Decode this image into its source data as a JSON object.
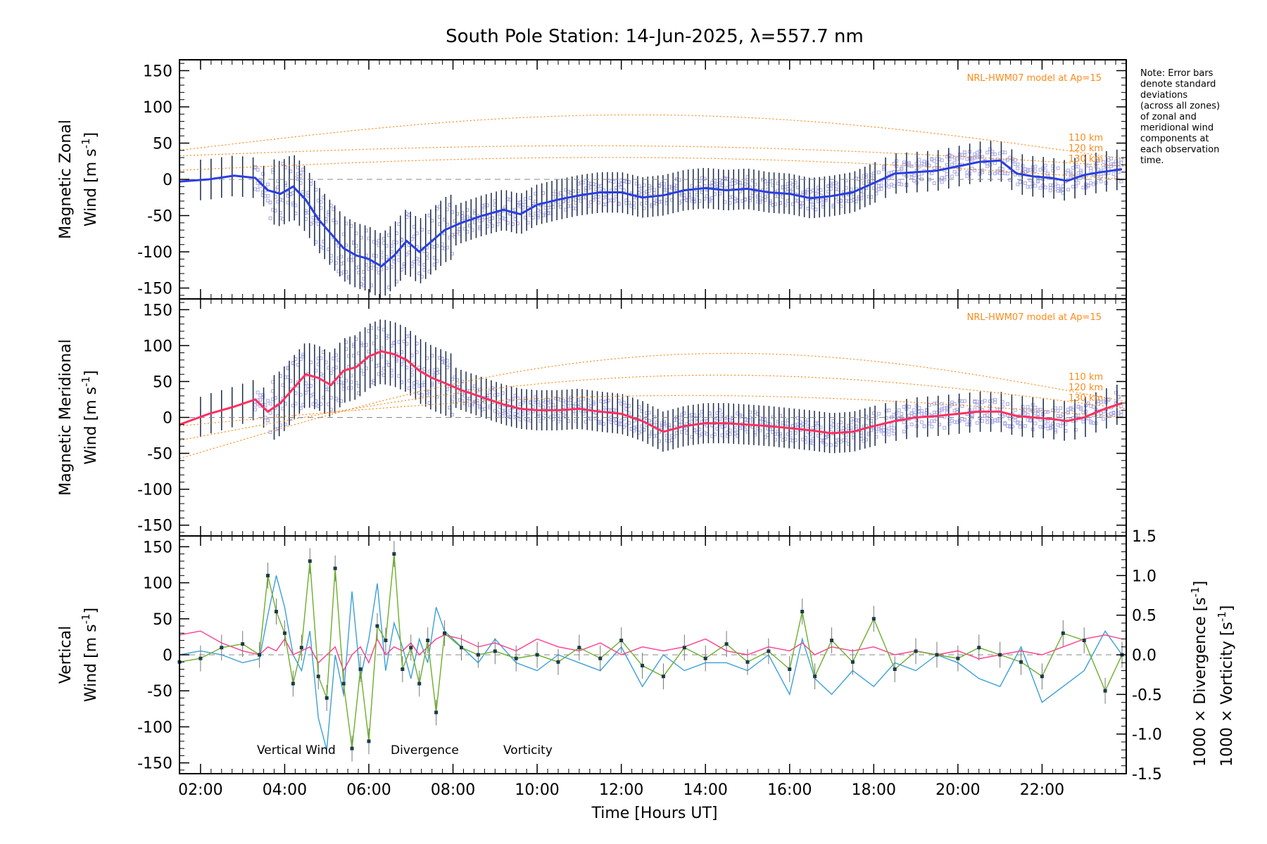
{
  "title": "South Pole Station: 14-Jun-2025, λ=557.7 nm",
  "xaxis": {
    "label": "Time [Hours UT]",
    "ticks": [
      "02:00",
      "04:00",
      "06:00",
      "08:00",
      "10:00",
      "12:00",
      "14:00",
      "16:00",
      "18:00",
      "20:00",
      "22:00"
    ],
    "tick_hours": [
      2,
      4,
      6,
      8,
      10,
      12,
      14,
      16,
      18,
      20,
      22
    ],
    "range": [
      1.5,
      24.0
    ]
  },
  "note_lines": [
    "Note: Error bars",
    "denote standard",
    "deviations",
    "(across all zones)",
    "of zonal and",
    "meridional wind",
    "components at",
    "each observation",
    "time."
  ],
  "colors": {
    "zonal": "#2a3fe0",
    "meridional": "#ff3060",
    "vertical": "#6cae2a",
    "divergence": "#3aa0d8",
    "vorticity": "#ff3b8a",
    "model": "#ff8a1a",
    "scatter": "#a9a8e6",
    "errorbar": "#1a2a4a"
  },
  "chart_data": [
    {
      "type": "line",
      "name": "zonal",
      "ylabel_line1": "Magnetic Zonal",
      "ylabel_line2": "Wind [m s",
      "ylabel_sup": "-1",
      "ylabel_close": "]",
      "ylim": [
        -165,
        165
      ],
      "yticks": [
        -150,
        -100,
        -50,
        0,
        50,
        100,
        150
      ],
      "model_label": "NRL-HWM07 model at Ap=15",
      "alt_labels": [
        "110 km",
        "120 km",
        "130 km"
      ],
      "x": [
        1.5,
        2.2,
        2.8,
        3.3,
        3.6,
        3.9,
        4.2,
        4.5,
        4.8,
        5.1,
        5.4,
        5.7,
        6.0,
        6.3,
        6.6,
        6.9,
        7.2,
        7.5,
        7.8,
        8.2,
        8.7,
        9.2,
        9.6,
        10.0,
        10.5,
        11.0,
        11.5,
        12.0,
        12.5,
        13.0,
        13.5,
        14.0,
        14.5,
        15.0,
        15.5,
        16.0,
        16.5,
        17.0,
        17.5,
        18.0,
        18.5,
        19.0,
        19.5,
        20.0,
        20.5,
        21.0,
        21.4,
        21.8,
        22.2,
        22.6,
        23.0,
        23.4,
        23.9
      ],
      "values": [
        -3,
        0,
        5,
        2,
        -15,
        -20,
        -10,
        -28,
        -55,
        -75,
        -95,
        -105,
        -110,
        -120,
        -105,
        -85,
        -100,
        -85,
        -70,
        -60,
        -50,
        -42,
        -48,
        -35,
        -28,
        -22,
        -18,
        -18,
        -25,
        -22,
        -15,
        -12,
        -15,
        -13,
        -18,
        -20,
        -26,
        -23,
        -18,
        -5,
        8,
        10,
        12,
        18,
        24,
        26,
        8,
        4,
        2,
        -2,
        6,
        10,
        14
      ]
    },
    {
      "type": "line",
      "name": "meridional",
      "ylabel_line1": "Magnetic Meridional",
      "ylabel_line2": "Wind [m s",
      "ylabel_sup": "-1",
      "ylabel_close": "]",
      "ylim": [
        -165,
        165
      ],
      "yticks": [
        -150,
        -100,
        -50,
        0,
        50,
        100,
        150
      ],
      "model_label": "NRL-HWM07 model at Ap=15",
      "alt_labels": [
        "110 km",
        "120 km",
        "130 km"
      ],
      "x": [
        1.5,
        2.2,
        2.8,
        3.3,
        3.6,
        3.9,
        4.2,
        4.5,
        4.8,
        5.1,
        5.4,
        5.7,
        6.0,
        6.3,
        6.6,
        6.9,
        7.2,
        7.5,
        7.8,
        8.2,
        8.7,
        9.2,
        9.6,
        10.0,
        10.5,
        11.0,
        11.5,
        12.0,
        12.5,
        13.0,
        13.5,
        14.0,
        14.5,
        15.0,
        15.5,
        16.0,
        16.5,
        17.0,
        17.5,
        18.0,
        18.5,
        19.0,
        19.5,
        20.0,
        20.5,
        21.0,
        21.4,
        21.8,
        22.2,
        22.6,
        23.0,
        23.4,
        23.9
      ],
      "values": [
        -10,
        5,
        15,
        25,
        8,
        20,
        40,
        60,
        55,
        45,
        65,
        70,
        85,
        92,
        88,
        80,
        65,
        55,
        48,
        38,
        28,
        18,
        12,
        10,
        10,
        12,
        8,
        5,
        -5,
        -20,
        -12,
        -8,
        -8,
        -10,
        -12,
        -15,
        -18,
        -22,
        -20,
        -12,
        -5,
        0,
        2,
        5,
        8,
        8,
        2,
        0,
        -2,
        -5,
        0,
        10,
        20
      ]
    },
    {
      "type": "line",
      "name": "vertical",
      "ylabel_line1": "Vertical",
      "ylabel_line2": "Wind [m s",
      "ylabel_sup": "-1",
      "ylabel_close": "]",
      "ylim": [
        -165,
        165
      ],
      "yticks": [
        -150,
        -100,
        -50,
        0,
        50,
        100,
        150
      ],
      "y2label": "1000 × Divergence [s",
      "y3label": "1000 × Vorticity [s",
      "y2lim": [
        -1.5,
        1.5
      ],
      "y2ticks": [
        -1.5,
        -1.0,
        -0.5,
        0.0,
        0.5,
        1.0,
        1.5
      ],
      "legend": [
        "Vertical Wind",
        "Divergence",
        "Vorticity"
      ],
      "x": [
        1.5,
        2.0,
        2.5,
        3.0,
        3.4,
        3.6,
        3.8,
        4.0,
        4.2,
        4.4,
        4.6,
        4.8,
        5.0,
        5.2,
        5.4,
        5.6,
        5.8,
        6.0,
        6.2,
        6.4,
        6.6,
        6.8,
        7.0,
        7.2,
        7.4,
        7.6,
        7.8,
        8.2,
        8.6,
        9.0,
        9.5,
        10.0,
        10.5,
        11.0,
        11.5,
        12.0,
        12.5,
        13.0,
        13.5,
        14.0,
        14.5,
        15.0,
        15.5,
        16.0,
        16.3,
        16.6,
        17.0,
        17.5,
        18.0,
        18.5,
        19.0,
        19.5,
        20.0,
        20.5,
        21.0,
        21.5,
        22.0,
        22.5,
        23.0,
        23.5,
        23.9
      ],
      "values": [
        -10,
        -5,
        10,
        15,
        0,
        110,
        60,
        30,
        -40,
        10,
        130,
        -30,
        -60,
        120,
        -40,
        -130,
        -20,
        -120,
        40,
        20,
        140,
        -20,
        10,
        -40,
        20,
        -80,
        30,
        10,
        0,
        5,
        -5,
        0,
        -10,
        10,
        -5,
        20,
        -15,
        -30,
        10,
        -5,
        15,
        -10,
        5,
        -20,
        60,
        -30,
        20,
        -10,
        50,
        -20,
        5,
        0,
        -5,
        10,
        0,
        -10,
        -30,
        30,
        20,
        -50,
        0
      ],
      "divergence": [
        0.0,
        0.05,
        0.0,
        -0.1,
        -0.05,
        0.5,
        1.0,
        0.6,
        0.0,
        -0.2,
        0.3,
        -0.8,
        -1.2,
        0.0,
        -0.5,
        0.8,
        -0.3,
        0.2,
        0.9,
        -0.2,
        0.4,
        0.1,
        -0.3,
        0.2,
        -0.1,
        0.6,
        0.3,
        0.1,
        -0.1,
        0.2,
        -0.1,
        -0.2,
        0.0,
        -0.1,
        -0.2,
        0.1,
        -0.4,
        0.0,
        -0.2,
        -0.1,
        -0.1,
        -0.2,
        0.0,
        -0.5,
        0.2,
        -0.3,
        -0.5,
        -0.2,
        -0.4,
        -0.1,
        -0.2,
        0.0,
        -0.1,
        -0.3,
        -0.4,
        0.1,
        -0.6,
        -0.4,
        -0.2,
        0.3,
        0.0
      ],
      "vorticity": [
        0.25,
        0.3,
        0.15,
        0.05,
        0.0,
        0.1,
        0.05,
        0.2,
        0.0,
        0.05,
        0.1,
        -0.1,
        0.0,
        0.1,
        -0.2,
        0.0,
        0.1,
        -0.1,
        0.2,
        0.0,
        0.1,
        0.05,
        0.15,
        0.0,
        0.1,
        0.2,
        0.25,
        0.2,
        0.1,
        0.15,
        0.05,
        0.2,
        0.1,
        0.05,
        0.15,
        0.0,
        0.1,
        0.05,
        0.1,
        0.2,
        0.05,
        0.0,
        0.1,
        0.05,
        0.15,
        0.0,
        0.1,
        0.05,
        0.1,
        0.0,
        0.05,
        0.0,
        0.05,
        -0.05,
        0.0,
        0.05,
        0.0,
        0.1,
        0.2,
        0.25,
        0.2
      ]
    }
  ]
}
